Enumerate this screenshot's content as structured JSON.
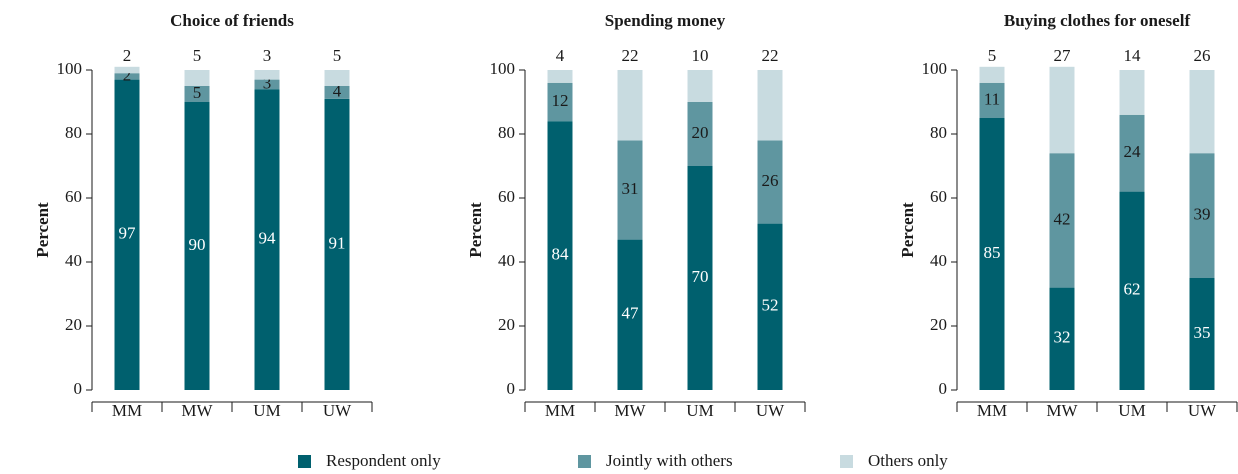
{
  "chart_data": [
    {
      "type": "stacked_bar",
      "title": "Choice of friends",
      "y_label": "Percent",
      "categories": [
        "MM",
        "MW",
        "UM",
        "UW"
      ],
      "series": [
        {
          "name": "Respondent only",
          "color": "#00606e",
          "values": [
            97,
            90,
            94,
            91
          ]
        },
        {
          "name": "Jointly with others",
          "color": "#5f96a0",
          "values": [
            2,
            5,
            3,
            4
          ]
        },
        {
          "name": "Others only",
          "color": "#c8dbe0",
          "values": [
            2,
            5,
            3,
            5
          ]
        }
      ],
      "ylim": [
        0,
        100
      ],
      "yticks": [
        0,
        20,
        40,
        60,
        80,
        100
      ]
    },
    {
      "type": "stacked_bar",
      "title": "Spending money",
      "y_label": "Percent",
      "categories": [
        "MM",
        "MW",
        "UM",
        "UW"
      ],
      "series": [
        {
          "name": "Respondent only",
          "color": "#00606e",
          "values": [
            84,
            47,
            70,
            52
          ]
        },
        {
          "name": "Jointly with others",
          "color": "#5f96a0",
          "values": [
            12,
            31,
            20,
            26
          ]
        },
        {
          "name": "Others only",
          "color": "#c8dbe0",
          "values": [
            4,
            22,
            10,
            22
          ]
        }
      ],
      "ylim": [
        0,
        100
      ],
      "yticks": [
        0,
        20,
        40,
        60,
        80,
        100
      ]
    },
    {
      "type": "stacked_bar",
      "title": "Buying clothes for oneself",
      "y_label": "Percent",
      "categories": [
        "MM",
        "MW",
        "UM",
        "UW"
      ],
      "series": [
        {
          "name": "Respondent only",
          "color": "#00606e",
          "values": [
            85,
            32,
            62,
            35
          ]
        },
        {
          "name": "Jointly with others",
          "color": "#5f96a0",
          "values": [
            11,
            42,
            24,
            39
          ]
        },
        {
          "name": "Others only",
          "color": "#c8dbe0",
          "values": [
            5,
            27,
            14,
            26
          ]
        }
      ],
      "ylim": [
        0,
        100
      ],
      "yticks": [
        0,
        20,
        40,
        60,
        80,
        100
      ]
    }
  ]
}
